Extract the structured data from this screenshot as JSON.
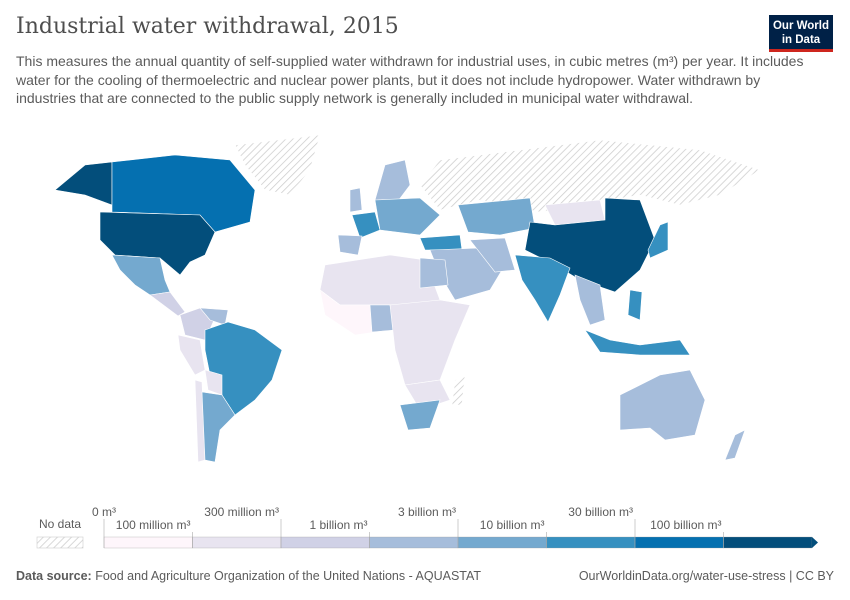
{
  "header": {
    "title": "Industrial water withdrawal, 2015",
    "subtitle": "This measures the annual quantity of self-supplied water withdrawn for industrial uses, in cubic metres (m³) per year. It includes water for the cooling of thermoelectric and nuclear power plants, but it does not include hydropower. Water withdrawn by industries that are connected to the public supply network is generally included in municipal water withdrawal.",
    "logo": "Our World in Data"
  },
  "legend": {
    "no_data": "No data",
    "upper_labels": [
      "0 m³",
      "300 million m³",
      "3 billion m³",
      "30 billion m³"
    ],
    "lower_labels": [
      "100 million m³",
      "1 billion m³",
      "10 billion m³",
      "100 billion m³"
    ],
    "colors": [
      "#fef6fb",
      "#e8e4f0",
      "#d0d1e6",
      "#a6bddb",
      "#74a9cf",
      "#3690c0",
      "#0570b0",
      "#034e7b"
    ],
    "no_data_color": "hatched-grey"
  },
  "footer": {
    "source_label": "Data source:",
    "source": "Food and Agriculture Organization of the United Nations - AQUASTAT",
    "url": "OurWorldinData.org/water-use-stress | CC BY"
  }
}
